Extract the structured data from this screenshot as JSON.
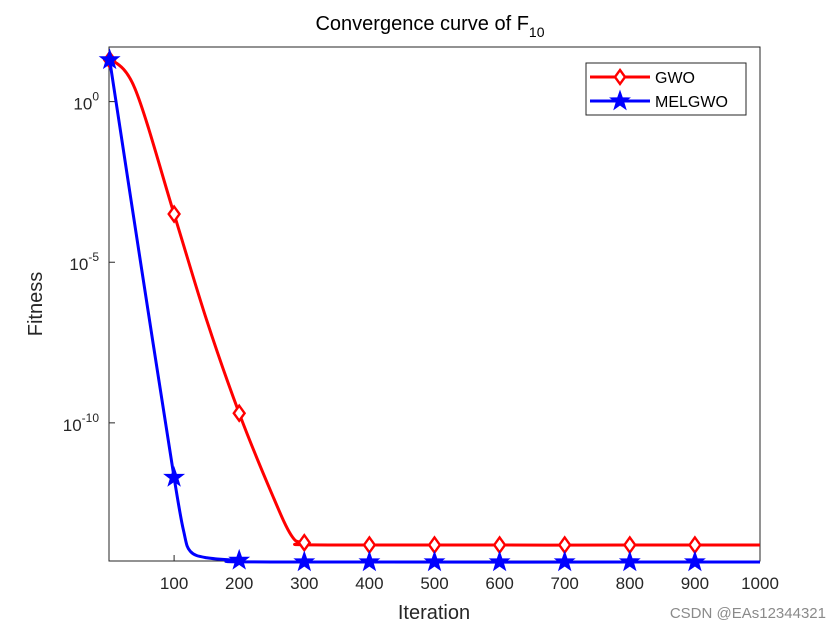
{
  "chart_data": {
    "type": "line",
    "title": "Convergence curve of F",
    "title_subscript": "10",
    "xlabel": "Iteration",
    "ylabel": "Fitness",
    "xscale": "linear",
    "yscale": "log",
    "xlim": [
      0,
      1000
    ],
    "ylim_log10": [
      -14.3,
      1.7
    ],
    "xticks": [
      100,
      200,
      300,
      400,
      500,
      600,
      700,
      800,
      900,
      1000
    ],
    "xtick_labels": [
      "100",
      "200",
      "300",
      "400",
      "500",
      "600",
      "700",
      "800",
      "900",
      "1000"
    ],
    "yticks_log10": [
      0,
      -5,
      -10
    ],
    "ytick_labels": [
      {
        "base": "10",
        "exp": "0"
      },
      {
        "base": "10",
        "exp": "-5"
      },
      {
        "base": "10",
        "exp": "-10"
      }
    ],
    "legend_position": "top-right",
    "series": [
      {
        "name": "GWO",
        "color": "#ff0000",
        "marker": "diamond",
        "curve_log10": [
          [
            1,
            1.35
          ],
          [
            40,
            0.4
          ],
          [
            100,
            -3.5
          ],
          [
            150,
            -6.8
          ],
          [
            200,
            -9.7
          ],
          [
            250,
            -12.2
          ],
          [
            280,
            -13.5
          ],
          [
            300,
            -13.73
          ],
          [
            350,
            -13.8
          ],
          [
            1000,
            -13.8
          ]
        ],
        "marker_x": [
          1,
          100,
          200,
          300,
          400,
          500,
          600,
          700,
          800,
          900
        ],
        "marker_log10": [
          1.3,
          -3.5,
          -9.7,
          -13.73,
          -13.8,
          -13.8,
          -13.8,
          -13.8,
          -13.8,
          -13.8
        ]
      },
      {
        "name": "MELGWO",
        "color": "#0000ff",
        "marker": "star",
        "curve_log10": [
          [
            1,
            1.3
          ],
          [
            50,
            -5.2
          ],
          [
            100,
            -11.7
          ],
          [
            115,
            -13.4
          ],
          [
            125,
            -14.0
          ],
          [
            150,
            -14.2
          ],
          [
            200,
            -14.28
          ],
          [
            250,
            -14.33
          ],
          [
            1000,
            -14.33
          ]
        ],
        "marker_x": [
          1,
          100,
          200,
          300,
          400,
          500,
          600,
          700,
          800,
          900
        ],
        "marker_log10": [
          1.3,
          -11.7,
          -14.28,
          -14.33,
          -14.33,
          -14.33,
          -14.33,
          -14.33,
          -14.33,
          -14.33
        ]
      }
    ]
  },
  "watermark": "CSDN @EAs12344321"
}
